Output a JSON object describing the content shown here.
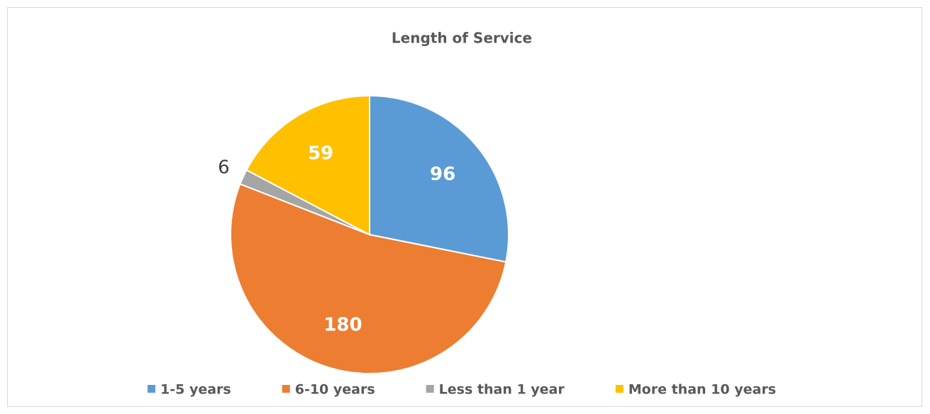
{
  "chart_data": {
    "type": "pie",
    "title": "Length of Service",
    "categories": [
      "1-5 years",
      "6-10 years",
      "Less than 1 year",
      "More than 10 years"
    ],
    "values": [
      96,
      180,
      6,
      59
    ],
    "colors": [
      "#5b9bd5",
      "#ed7d31",
      "#a5a5a5",
      "#ffc000"
    ],
    "legend": "bottom"
  }
}
